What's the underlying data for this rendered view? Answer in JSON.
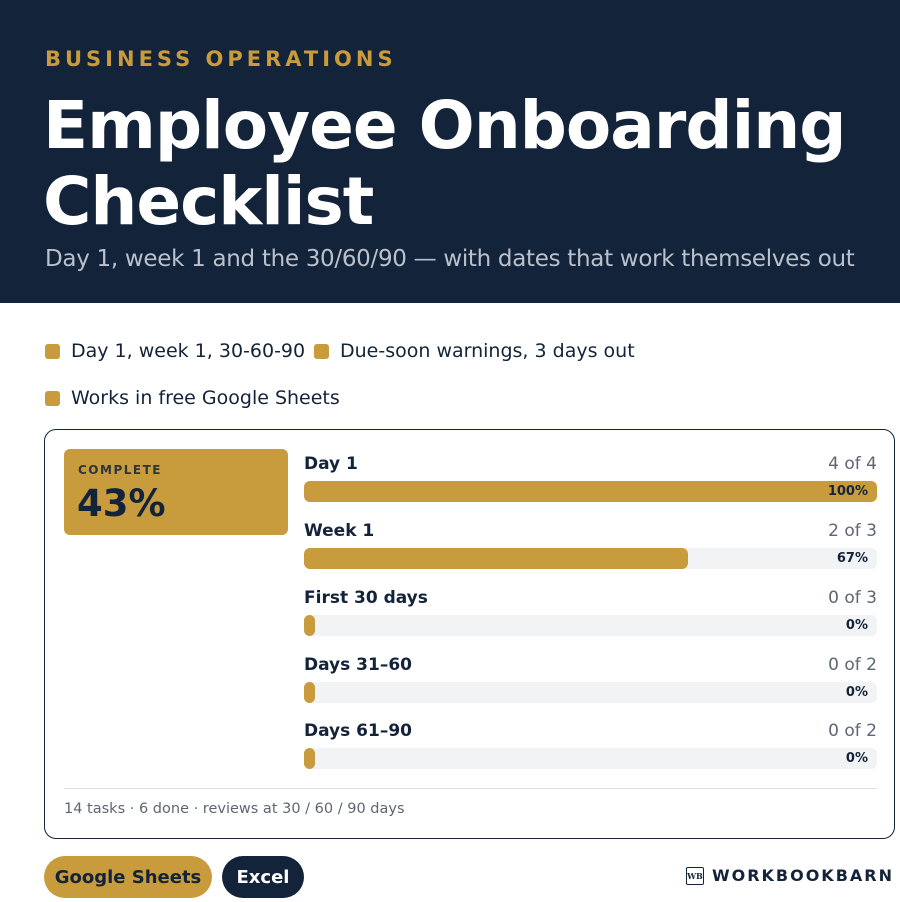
{
  "hero": {
    "eyebrow": "BUSINESS OPERATIONS",
    "title": "Employee Onboarding Checklist",
    "subtitle": "Day 1, week 1 and the 30/60/90 — with dates that work themselves out"
  },
  "features": [
    "Day 1, week 1, 30-60-90",
    "Due-soon warnings, 3 days out",
    "Works in free Google Sheets"
  ],
  "summary": {
    "complete_label": "COMPLETE",
    "complete_value": "43%",
    "footnote": "14 tasks · 6 done · reviews at 30 / 60 / 90 days"
  },
  "phases": [
    {
      "name": "Day 1",
      "count": "4 of 4",
      "percent": "100%",
      "fraction": 1.0
    },
    {
      "name": "Week 1",
      "count": "2 of 3",
      "percent": "67%",
      "fraction": 0.67
    },
    {
      "name": "First 30 days",
      "count": "0 of 3",
      "percent": "0%",
      "fraction": 0
    },
    {
      "name": "Days 31–60",
      "count": "0 of 2",
      "percent": "0%",
      "fraction": 0
    },
    {
      "name": "Days 61–90",
      "count": "0 of 2",
      "percent": "0%",
      "fraction": 0
    }
  ],
  "buttons": {
    "sheets": "Google Sheets",
    "excel": "Excel"
  },
  "brand": {
    "logo_text": "WB",
    "name": "WORKBOOKBARN"
  },
  "colors": {
    "navy": "#13233a",
    "gold": "#c89b3c"
  }
}
